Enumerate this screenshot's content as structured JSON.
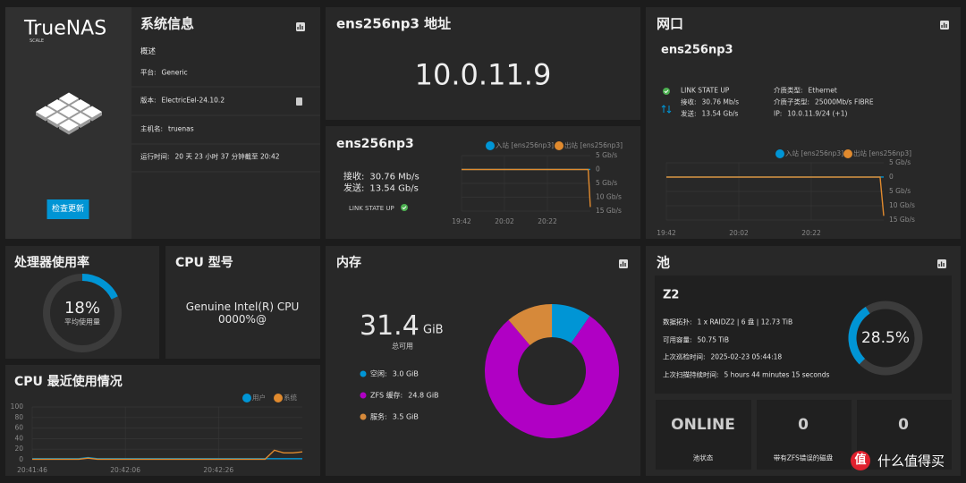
{
  "logo": {
    "name": "TrueNAS",
    "edition": "SCALE"
  },
  "update_button": "检查更新",
  "system_info": {
    "title": "系统信息",
    "section": "概述",
    "rows": [
      {
        "label": "平台:",
        "value": "Generic"
      },
      {
        "label": "版本:",
        "value": "ElectricEel-24.10.2"
      },
      {
        "label": "主机名:",
        "value": "truenas"
      },
      {
        "label": "运行时间:",
        "value": "20 天 23 小时 37 分钟截至 20:42"
      }
    ]
  },
  "address": {
    "title": "ens256np3 地址",
    "ip": "10.0.11.9"
  },
  "traffic": {
    "title": "ens256np3",
    "rows": [
      {
        "label": "接收:",
        "value": "30.76 Mb/s"
      },
      {
        "label": "发送:",
        "value": "13.54 Gb/s"
      }
    ],
    "status": "LINK STATE UP",
    "chart": {
      "type": "line",
      "x": [
        0,
        59,
        60
      ],
      "xlim": [
        0,
        60
      ],
      "xticks": [
        {
          "value": 0,
          "label": "19:42"
        },
        {
          "value": 20,
          "label": "20:02"
        },
        {
          "value": 40,
          "label": "20:22"
        }
      ],
      "ylim": [
        -15,
        5
      ],
      "yticks": [
        {
          "value": 5,
          "label": "5 Gb/s"
        },
        0,
        {
          "value": -5,
          "label": "5 Gb/s"
        },
        {
          "value": -10,
          "label": "10 Gb/s"
        },
        {
          "value": -15,
          "label": "15 Gb/s"
        }
      ],
      "series": [
        {
          "name": "入站 [ens256np3]",
          "color": "#0095d5",
          "values": [
            0.03,
            0.03,
            0.03
          ]
        },
        {
          "name": "出站 [ens256np3]",
          "color": "#e08a2e",
          "values": [
            0,
            0,
            -13.54
          ]
        }
      ]
    }
  },
  "network": {
    "title": "网口",
    "interface": "ens256np3",
    "status": "LINK STATE UP",
    "rows": [
      {
        "label": "接收:",
        "value": "30.76 Mb/s"
      },
      {
        "label": "发送:",
        "value": "13.54 Gb/s"
      }
    ],
    "details": [
      {
        "label": "介质类型:",
        "value": "Ethernet"
      },
      {
        "label": "介质子类型:",
        "value": "25000Mb/s FIBRE"
      },
      {
        "label": "IP:",
        "value": "10.0.11.9/24 (+1)"
      }
    ],
    "chart": {
      "type": "line",
      "x": [
        0,
        59,
        60
      ],
      "xlim": [
        0,
        60
      ],
      "xticks": [
        {
          "value": 0,
          "label": "19:42"
        },
        {
          "value": 20,
          "label": "20:02"
        },
        {
          "value": 40,
          "label": "20:22"
        }
      ],
      "ylim": [
        -15,
        5
      ],
      "yticks": [
        {
          "value": 5,
          "label": "5 Gb/s"
        },
        0,
        {
          "value": -5,
          "label": "5 Gb/s"
        },
        {
          "value": -10,
          "label": "10 Gb/s"
        },
        {
          "value": -15,
          "label": "15 Gb/s"
        }
      ],
      "series": [
        {
          "name": "入站 [ens256np3]",
          "color": "#0095d5",
          "values": [
            0.03,
            0.03,
            0.03
          ]
        },
        {
          "name": "出站 [ens256np3]",
          "color": "#e08a2e",
          "values": [
            0,
            0,
            -13.54
          ]
        }
      ]
    }
  },
  "cpu_usage": {
    "title": "处理器使用率",
    "chart": {
      "type": "gauge",
      "values": [
        18
      ],
      "value_labels": [
        "18%"
      ],
      "caption": "平均使用量",
      "color": "#0095d5",
      "ylim": [
        0,
        100
      ]
    }
  },
  "cpu_model": {
    "title": "CPU 型号",
    "model": "Genuine Intel(R) CPU 0000%@"
  },
  "cpu_history": {
    "title": "CPU 最近使用情况",
    "chart": {
      "type": "line",
      "x": [
        0,
        2,
        4,
        6,
        8,
        10,
        12,
        14,
        16,
        18,
        20,
        22,
        24,
        26,
        28,
        30,
        32,
        34,
        36,
        38,
        40,
        42,
        44,
        46,
        48,
        50,
        52,
        54,
        56,
        58
      ],
      "xlim": [
        0,
        58
      ],
      "xticks": [
        {
          "value": 0,
          "label": "20:41:46"
        },
        {
          "value": 20,
          "label": "20:42:06"
        },
        {
          "value": 40,
          "label": "20:42:26"
        }
      ],
      "ylim": [
        0,
        100
      ],
      "yticks": [
        0,
        20,
        40,
        60,
        80,
        100
      ],
      "series": [
        {
          "name": "用户",
          "color": "#0095d5",
          "values": [
            2,
            2,
            2,
            2,
            2,
            2,
            4,
            2,
            2,
            2,
            2,
            2,
            2,
            2,
            2,
            2,
            2,
            2,
            2,
            2,
            2,
            2,
            2,
            2,
            2,
            2,
            2,
            2,
            2,
            2
          ]
        },
        {
          "name": "系统",
          "color": "#e08a2e",
          "values": [
            1,
            1,
            1,
            1,
            1,
            1,
            3,
            1,
            1,
            1,
            1,
            1,
            1,
            1,
            1,
            1,
            1,
            1,
            1,
            1,
            1,
            1,
            1,
            1,
            1,
            1,
            18,
            13,
            13,
            15
          ]
        }
      ]
    }
  },
  "memory": {
    "title": "内存",
    "total": 31.4,
    "unit": "GiB",
    "caption": "总可用",
    "chart": {
      "type": "donut",
      "categories": [
        "空闲:",
        "ZFS 缓存:",
        "服务:"
      ],
      "values": [
        3.0,
        24.8,
        3.5
      ],
      "value_labels": [
        "3.0 GiB",
        "24.8 GiB",
        "3.5 GiB"
      ],
      "colors": [
        "#0095d5",
        "#b000c4",
        "#d6893a"
      ]
    }
  },
  "pool": {
    "title": "池",
    "name": "Z2",
    "rows": [
      {
        "label": "数据拓扑:",
        "value": "1 x RAIDZ2 | 6 盘 | 12.73 TiB"
      },
      {
        "label": "可用容量:",
        "value": "50.75 TiB"
      },
      {
        "label": "上次巡检时间:",
        "value": "2025-02-23 05:44:18"
      },
      {
        "label": "上次扫描持续时间:",
        "value": "5 hours 44 minutes 15 seconds"
      }
    ],
    "chart": {
      "type": "gauge",
      "values": [
        28.5
      ],
      "value_labels": [
        "28.5%"
      ],
      "color": "#0095d5",
      "ylim": [
        0,
        100
      ]
    },
    "stats": [
      {
        "value": "ONLINE",
        "label": "池状态"
      },
      {
        "value": 0,
        "label": "带有ZFS错误的磁盘"
      },
      {
        "value": 0
      }
    ]
  },
  "watermark": {
    "icon": "值",
    "text": "什么值得买"
  }
}
